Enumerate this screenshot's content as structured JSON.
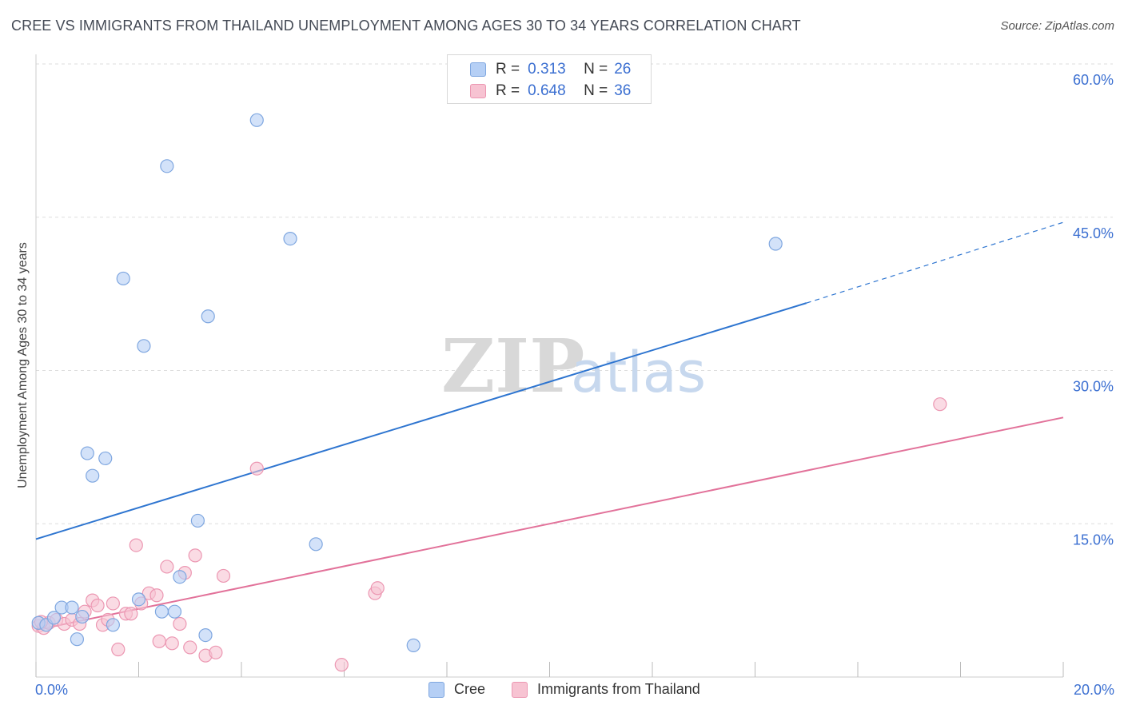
{
  "title": "CREE VS IMMIGRANTS FROM THAILAND UNEMPLOYMENT AMONG AGES 30 TO 34 YEARS CORRELATION CHART",
  "source": "Source: ZipAtlas.com",
  "watermark": {
    "zip": "ZIP",
    "atlas": "atlas"
  },
  "colors": {
    "cree_fill": "#b5cff5",
    "cree_stroke": "#7fa7e0",
    "cree_line": "#2e75d0",
    "thai_fill": "#f7c3d2",
    "thai_stroke": "#ec97b2",
    "thai_line": "#e2729a",
    "axis_text": "#3b6fd1",
    "grid": "#dddddd"
  },
  "legend_top": {
    "rows": [
      {
        "r_label": "R =",
        "r_value": "0.313",
        "n_label": "N =",
        "n_value": "26"
      },
      {
        "r_label": "R =",
        "r_value": "0.648",
        "n_label": "N =",
        "n_value": "36"
      }
    ]
  },
  "legend_bottom": {
    "items": [
      "Cree",
      "Immigrants from Thailand"
    ]
  },
  "chart_data": {
    "type": "scatter",
    "title": "CREE VS IMMIGRANTS FROM THAILAND UNEMPLOYMENT AMONG AGES 30 TO 34 YEARS CORRELATION CHART",
    "xlabel": "",
    "ylabel": "Unemployment Among Ages 30 to 34 years",
    "xlim": [
      0,
      20
    ],
    "ylim": [
      0,
      60
    ],
    "x_tick_labels": [
      {
        "value": 0,
        "label": "0.0%"
      },
      {
        "value": 20,
        "label": "20.0%"
      }
    ],
    "y_tick_labels": [
      {
        "value": 15,
        "label": "15.0%"
      },
      {
        "value": 30,
        "label": "30.0%"
      },
      {
        "value": 45,
        "label": "45.0%"
      },
      {
        "value": 60,
        "label": "60.0%"
      }
    ],
    "grid": true,
    "legend_position": "top-center",
    "series": [
      {
        "name": "Cree",
        "r": 0.313,
        "n": 26,
        "points": [
          [
            0.05,
            5.3
          ],
          [
            0.2,
            5.1
          ],
          [
            0.35,
            5.8
          ],
          [
            0.5,
            6.8
          ],
          [
            0.7,
            6.8
          ],
          [
            0.9,
            5.9
          ],
          [
            1.0,
            21.9
          ],
          [
            1.1,
            19.7
          ],
          [
            1.35,
            21.4
          ],
          [
            1.5,
            5.1
          ],
          [
            1.7,
            39.0
          ],
          [
            2.0,
            7.6
          ],
          [
            2.1,
            32.4
          ],
          [
            2.45,
            6.4
          ],
          [
            2.55,
            50.0
          ],
          [
            2.7,
            6.4
          ],
          [
            2.8,
            9.8
          ],
          [
            3.15,
            15.3
          ],
          [
            3.3,
            4.1
          ],
          [
            3.35,
            35.3
          ],
          [
            4.3,
            54.5
          ],
          [
            4.95,
            42.9
          ],
          [
            5.45,
            13.0
          ],
          [
            7.35,
            3.1
          ],
          [
            0.8,
            3.7
          ],
          [
            14.4,
            42.4
          ]
        ],
        "trend": {
          "x0": 0,
          "y0": 13.5,
          "x1": 15.0,
          "y1": 36.6,
          "dashed_to_x": 20,
          "dashed_to_y": 44.5
        }
      },
      {
        "name": "Immigrants from Thailand",
        "r": 0.648,
        "n": 36,
        "points": [
          [
            0.05,
            5.0
          ],
          [
            0.15,
            4.8
          ],
          [
            0.25,
            5.3
          ],
          [
            0.4,
            5.6
          ],
          [
            0.55,
            5.2
          ],
          [
            0.7,
            5.6
          ],
          [
            0.85,
            5.2
          ],
          [
            0.95,
            6.4
          ],
          [
            1.1,
            7.5
          ],
          [
            1.2,
            7.0
          ],
          [
            1.3,
            5.1
          ],
          [
            1.4,
            5.6
          ],
          [
            1.5,
            7.2
          ],
          [
            1.6,
            2.7
          ],
          [
            1.75,
            6.2
          ],
          [
            1.85,
            6.2
          ],
          [
            1.95,
            12.9
          ],
          [
            2.05,
            7.2
          ],
          [
            2.2,
            8.2
          ],
          [
            2.35,
            8.0
          ],
          [
            2.4,
            3.5
          ],
          [
            2.55,
            10.8
          ],
          [
            2.65,
            3.3
          ],
          [
            2.8,
            5.2
          ],
          [
            2.9,
            10.2
          ],
          [
            3.0,
            2.9
          ],
          [
            3.1,
            11.9
          ],
          [
            3.3,
            2.1
          ],
          [
            3.5,
            2.4
          ],
          [
            3.65,
            9.9
          ],
          [
            4.3,
            20.4
          ],
          [
            5.95,
            1.2
          ],
          [
            6.6,
            8.2
          ],
          [
            6.65,
            8.7
          ],
          [
            17.6,
            26.7
          ],
          [
            0.1,
            5.4
          ]
        ],
        "trend": {
          "x0": 0,
          "y0": 4.6,
          "x1": 20,
          "y1": 25.4
        }
      }
    ]
  }
}
